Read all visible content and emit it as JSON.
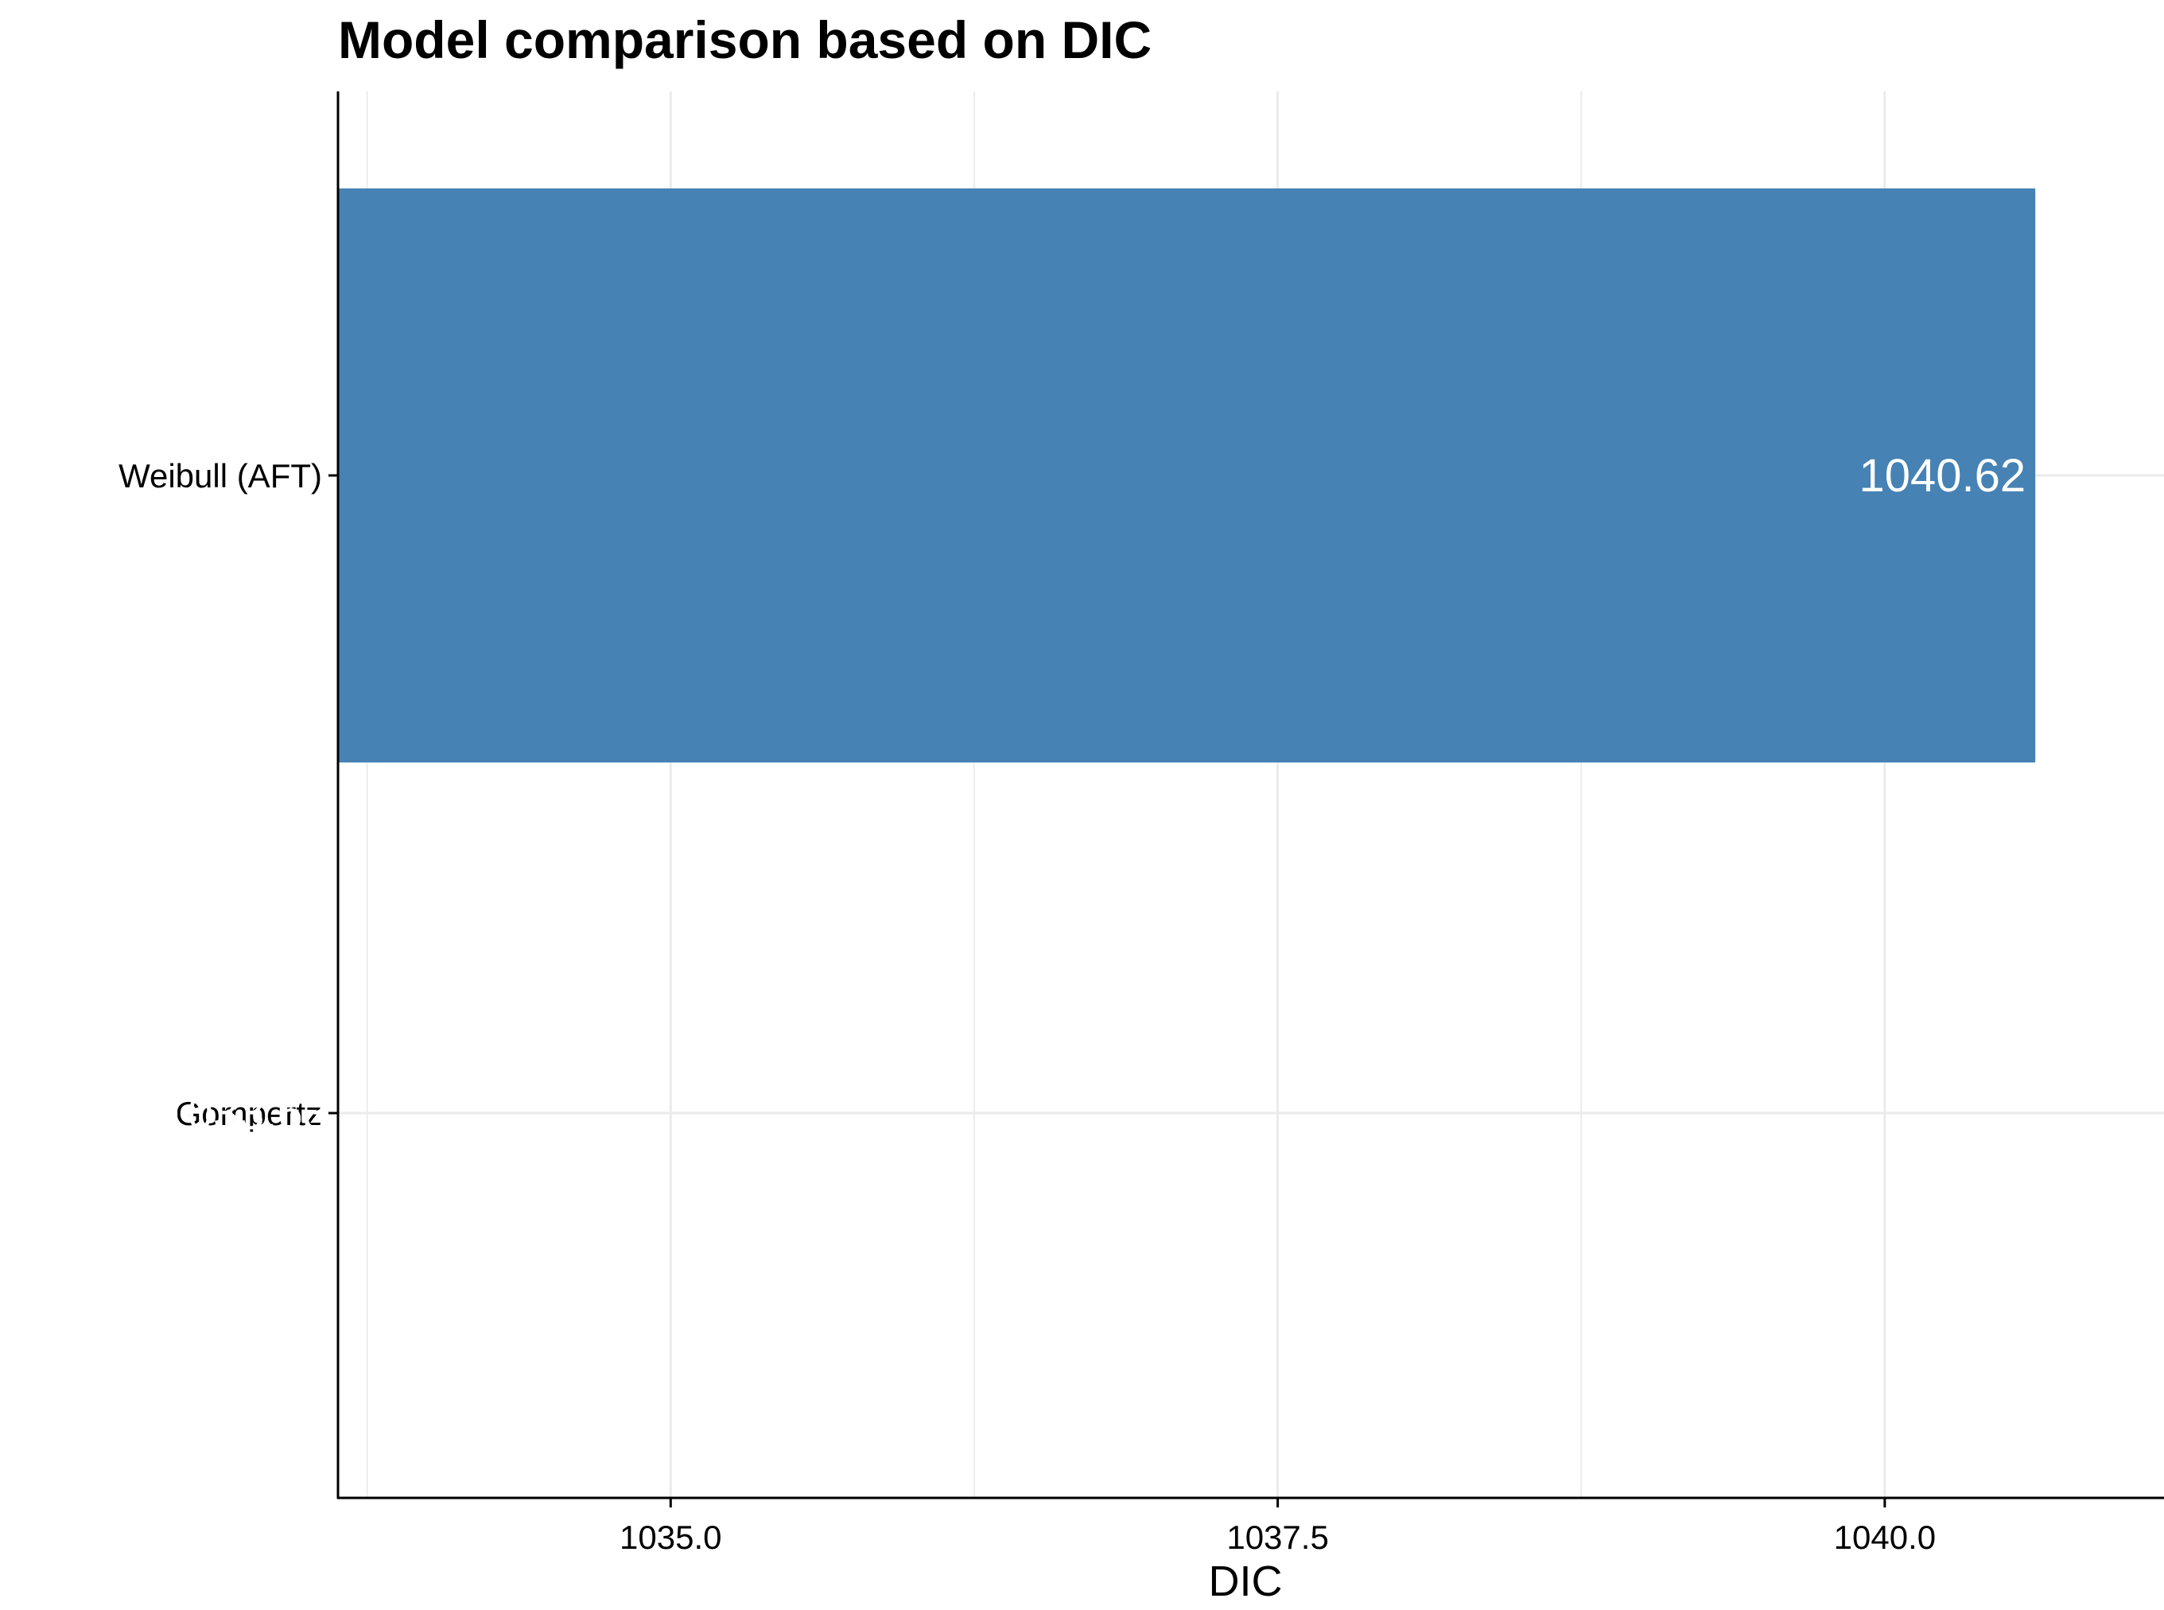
{
  "chart_data": {
    "type": "bar",
    "orientation": "horizontal",
    "title": "Model comparison based on DIC",
    "xlabel": "DIC",
    "ylabel": "",
    "categories": [
      "Gompertz",
      "Weibull (AFT)"
    ],
    "values": [
      1033.63,
      1040.62
    ],
    "data_labels": [
      "1033.63",
      "1040.62"
    ],
    "xlim": [
      1033.63,
      1041.15
    ],
    "x_ticks": [
      1035.0,
      1037.5,
      1040.0
    ],
    "x_tick_labels": [
      "1035.0",
      "1037.5",
      "1040.0"
    ],
    "grid": true,
    "legend": "none",
    "colors": {
      "bar": "#4682b4",
      "grid": "#ebebeb",
      "axis": "#000000",
      "bar_label": "#ffffff"
    }
  }
}
